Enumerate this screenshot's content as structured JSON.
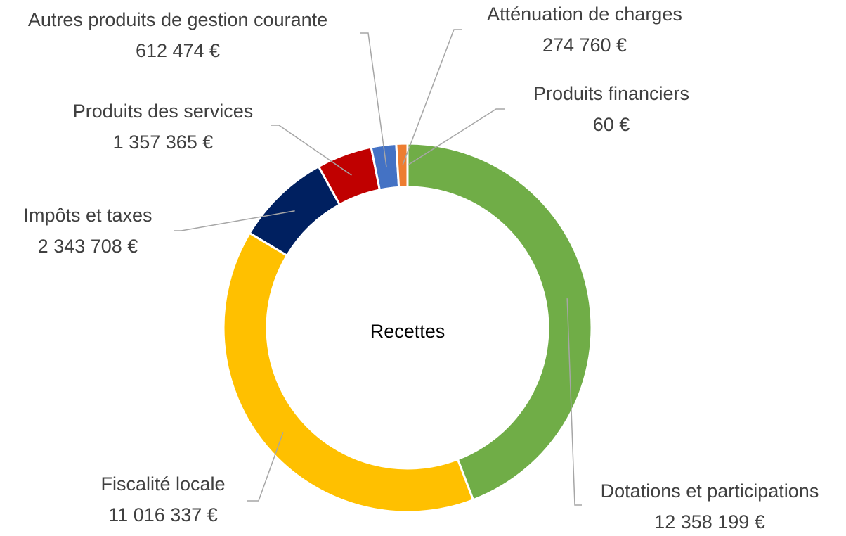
{
  "chart_data": {
    "type": "donut",
    "center_label": "Recettes",
    "categories": [
      "Dotations et participations",
      "Fiscalité locale",
      "Impôts et taxes",
      "Produits des services",
      "Autres produits de gestion courante",
      "Atténuation de charges",
      "Produits financiers"
    ],
    "values": [
      12358199,
      11016337,
      2343708,
      1357365,
      612474,
      274760,
      60
    ],
    "value_labels": [
      "12 358 199 €",
      "11 016 337 €",
      "2 343 708 €",
      "1 357 365 €",
      "612 474 €",
      "274 760 €",
      "60 €"
    ],
    "colors": [
      "#70ad47",
      "#ffc000",
      "#002060",
      "#c00000",
      "#4472c4",
      "#ed7d31",
      "#a5a5a5"
    ]
  }
}
